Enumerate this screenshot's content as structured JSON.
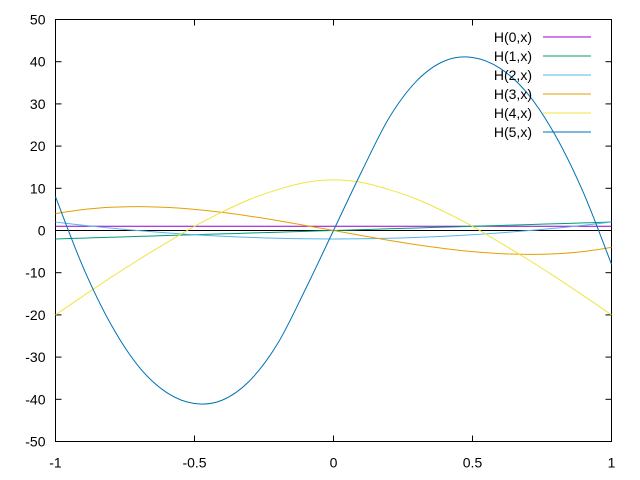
{
  "chart_data": {
    "type": "line",
    "xlim": [
      -1,
      1
    ],
    "ylim": [
      -50,
      50
    ],
    "x_ticks": [
      "-1",
      "-0.5",
      "0",
      "0.5",
      "1"
    ],
    "y_ticks": [
      "50",
      "40",
      "30",
      "20",
      "10",
      "0",
      "-10",
      "-20",
      "-30",
      "-40",
      "-50"
    ],
    "zero_line": true,
    "grid": false,
    "legend_placement": "top-right",
    "x": [
      -1,
      -0.9,
      -0.8,
      -0.7,
      -0.6,
      -0.5,
      -0.4,
      -0.3,
      -0.2,
      -0.1,
      0,
      0.1,
      0.2,
      0.3,
      0.4,
      0.5,
      0.6,
      0.7,
      0.8,
      0.9,
      1
    ],
    "series": [
      {
        "name": "H(0,x)",
        "color": "#9400d3",
        "values": [
          1,
          1,
          1,
          1,
          1,
          1,
          1,
          1,
          1,
          1,
          1,
          1,
          1,
          1,
          1,
          1,
          1,
          1,
          1,
          1,
          1
        ]
      },
      {
        "name": "H(1,x)",
        "color": "#009e73",
        "values": [
          -2,
          -1.8,
          -1.6,
          -1.4,
          -1.2,
          -1,
          -0.8,
          -0.6,
          -0.4,
          -0.2,
          0,
          0.2,
          0.4,
          0.6,
          0.8,
          1,
          1.2,
          1.4,
          1.6,
          1.8,
          2
        ]
      },
      {
        "name": "H(2,x)",
        "color": "#56b4e9",
        "values": [
          2,
          1.24,
          0.56,
          -0.04,
          -0.56,
          -1,
          -1.36,
          -1.64,
          -1.84,
          -1.96,
          -2,
          -1.96,
          -1.84,
          -1.64,
          -1.36,
          -1,
          -0.56,
          -0.04,
          0.56,
          1.24,
          2
        ]
      },
      {
        "name": "H(3,x)",
        "color": "#e69f00",
        "values": [
          4,
          4.968,
          5.504,
          5.656,
          5.472,
          5,
          4.288,
          3.384,
          2.336,
          1.192,
          0,
          -1.192,
          -2.336,
          -3.384,
          -4.288,
          -5,
          -5.472,
          -5.656,
          -5.504,
          -4.968,
          -4
        ]
      },
      {
        "name": "H(4,x)",
        "color": "#f0e442",
        "values": [
          -20,
          -15.5,
          -11.1,
          -6.9,
          -2.9,
          1,
          4.4,
          7.4,
          9.7,
          11.4,
          12,
          11.4,
          9.7,
          7.4,
          4.4,
          1,
          -2.9,
          -6.9,
          -11.1,
          -15.5,
          -20
        ]
      },
      {
        "name": "H(5,x)",
        "color": "#0072b2",
        "values": [
          8,
          -8.8,
          -22.3,
          -32.3,
          -38.4,
          -41,
          -40.2,
          -35.5,
          -26.7,
          -13.8,
          0,
          13.8,
          26.7,
          35.5,
          40.2,
          41,
          38.4,
          32.3,
          22.3,
          8.8,
          -8
        ]
      }
    ]
  }
}
